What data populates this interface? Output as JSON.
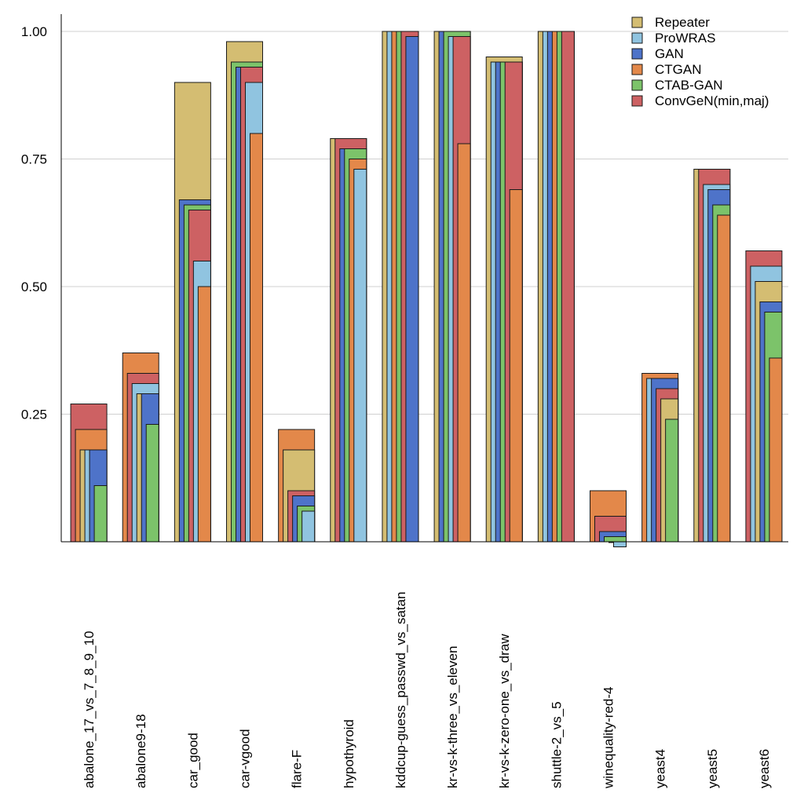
{
  "chart_data": {
    "type": "bar",
    "categories": [
      "abalone_17_vs_7_8_9_10",
      "abalone9-18",
      "car_good",
      "car-vgood",
      "flare-F",
      "hypothyroid",
      "kddcup-guess_passwd_vs_satan",
      "kr-vs-k-three_vs_eleven",
      "kr-vs-k-zero-one_vs_draw",
      "shuttle-2_vs_5",
      "winequality-red-4",
      "yeast4",
      "yeast5",
      "yeast6"
    ],
    "series": [
      {
        "name": "Repeater",
        "color": "#d4bd72",
        "values": [
          0.18,
          0.29,
          0.9,
          0.98,
          0.18,
          0.79,
          1.0,
          1.0,
          0.95,
          1.0,
          0.0,
          0.28,
          0.73,
          0.51
        ]
      },
      {
        "name": "ProWRAS",
        "color": "#90c4e0",
        "values": [
          0.18,
          0.31,
          0.55,
          0.9,
          0.06,
          0.73,
          1.0,
          0.99,
          0.94,
          1.0,
          -0.01,
          0.32,
          0.7,
          0.54
        ]
      },
      {
        "name": "GAN",
        "color": "#4e73c9",
        "values": [
          0.18,
          0.29,
          0.67,
          0.93,
          0.09,
          0.77,
          0.99,
          1.0,
          0.94,
          1.0,
          0.02,
          0.32,
          0.69,
          0.47
        ]
      },
      {
        "name": "CTGAN",
        "color": "#e3884a",
        "values": [
          0.22,
          0.37,
          0.5,
          0.8,
          0.22,
          0.75,
          1.0,
          0.78,
          0.69,
          1.0,
          0.1,
          0.33,
          0.64,
          0.36
        ]
      },
      {
        "name": "CTAB-GAN",
        "color": "#7cc36a",
        "values": [
          0.11,
          0.23,
          0.66,
          0.94,
          0.07,
          0.77,
          1.0,
          1.0,
          0.94,
          1.0,
          0.01,
          0.24,
          0.66,
          0.45
        ]
      },
      {
        "name": "ConvGeN(min,maj)",
        "color": "#cd6163",
        "values": [
          0.27,
          0.33,
          0.65,
          0.93,
          0.1,
          0.79,
          1.0,
          0.99,
          0.94,
          1.0,
          0.05,
          0.3,
          0.73,
          0.57
        ]
      }
    ],
    "yticks": [
      "0.25",
      "0.50",
      "0.75",
      "1.00"
    ],
    "ylim": [
      0,
      1.02
    ],
    "grid": true,
    "legend": "top-right"
  }
}
